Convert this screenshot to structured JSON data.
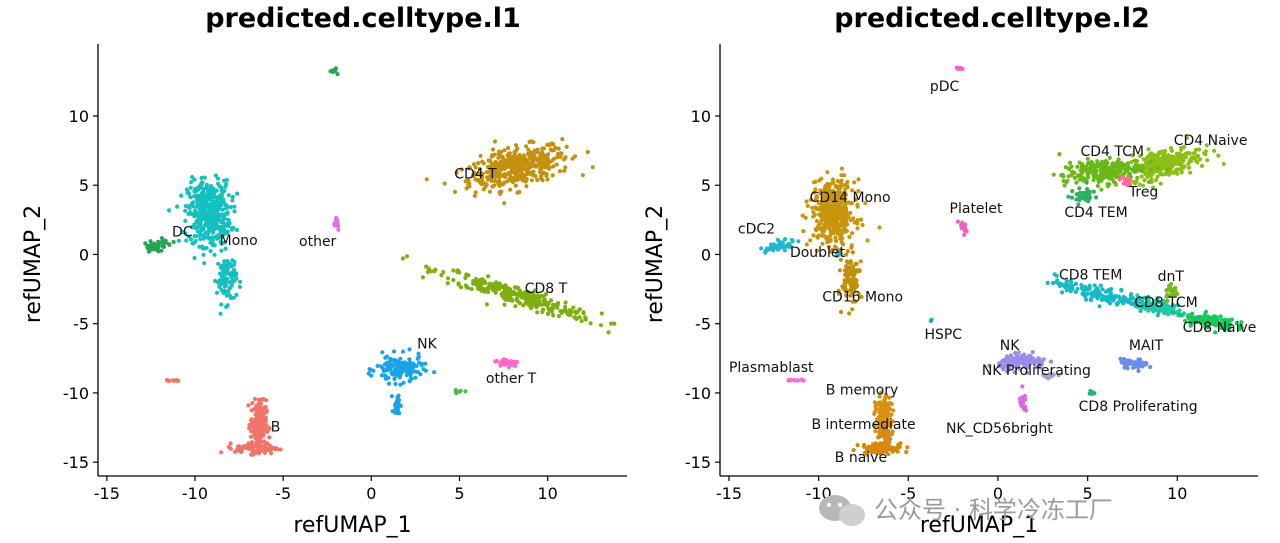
{
  "chart_data": [
    {
      "type": "scatter",
      "title": "predicted.celltype.l1",
      "xlabel": "refUMAP_1",
      "ylabel": "refUMAP_2",
      "xlim": [
        -15.5,
        14.5
      ],
      "ylim": [
        -16,
        15.2
      ],
      "xticks": [
        -15,
        -10,
        -5,
        0,
        5,
        10
      ],
      "yticks": [
        -15,
        -10,
        -5,
        0,
        5,
        10
      ],
      "xtick_labels": [
        "-15",
        "-10",
        "-5",
        "0",
        "5",
        "10"
      ],
      "ytick_labels": [
        "-15",
        "-10",
        "-5",
        "0",
        "5",
        "10"
      ],
      "clusters": [
        {
          "name": "CD4 T",
          "color": "#c59010",
          "center": [
            8.3,
            6.3
          ],
          "spread": [
            2.7,
            1.2
          ],
          "angle": 18,
          "count": 420,
          "label": "CD4 T",
          "label_pos": [
            4.7,
            5.5
          ]
        },
        {
          "name": "CD8 T",
          "color": "#7fae10",
          "center": [
            8.3,
            -3.0
          ],
          "spread": [
            4.4,
            0.55
          ],
          "angle": -22,
          "count": 280,
          "label": "CD8 T",
          "label_pos": [
            8.7,
            -2.8
          ]
        },
        {
          "name": "Mono",
          "color": "#14c0c0",
          "center": [
            -9.2,
            3.0
          ],
          "spread": [
            1.1,
            2.1
          ],
          "angle": 0,
          "count": 420,
          "label": "Mono",
          "label_pos": [
            -8.6,
            0.7
          ]
        },
        {
          "name": "Mono tail",
          "color": "#14c0c0",
          "center": [
            -8.2,
            -1.7
          ],
          "spread": [
            0.5,
            1.6
          ],
          "angle": 0,
          "count": 100
        },
        {
          "name": "DC",
          "color": "#24a550",
          "center": [
            -12.2,
            0.6
          ],
          "spread": [
            0.8,
            0.3
          ],
          "angle": 20,
          "count": 45,
          "label": "DC",
          "label_pos": [
            -11.3,
            1.3
          ]
        },
        {
          "name": "DC top",
          "color": "#24a550",
          "center": [
            -2.1,
            13.3
          ],
          "spread": [
            0.3,
            0.2
          ],
          "angle": 0,
          "count": 8
        },
        {
          "name": "NK",
          "color": "#1aa3e8",
          "center": [
            1.6,
            -8.3
          ],
          "spread": [
            1.2,
            0.9
          ],
          "angle": 0,
          "count": 130,
          "label": "NK",
          "label_pos": [
            2.6,
            -6.8
          ]
        },
        {
          "name": "NK tail",
          "color": "#1aa3e8",
          "center": [
            1.5,
            -10.8
          ],
          "spread": [
            0.2,
            0.8
          ],
          "angle": 0,
          "count": 22
        },
        {
          "name": "B",
          "color": "#f07468",
          "center": [
            -6.4,
            -12.3
          ],
          "spread": [
            0.4,
            1.6
          ],
          "angle": 0,
          "count": 190,
          "label": "B",
          "label_pos": [
            -5.7,
            -12.8
          ]
        },
        {
          "name": "B base",
          "color": "#f07468",
          "center": [
            -6.5,
            -14.0
          ],
          "spread": [
            1.1,
            0.35
          ],
          "angle": 0,
          "count": 80
        },
        {
          "name": "B small",
          "color": "#f07468",
          "center": [
            -11.3,
            -9.1
          ],
          "spread": [
            0.5,
            0.06
          ],
          "angle": 0,
          "count": 10
        },
        {
          "name": "other",
          "color": "#e06ee8",
          "center": [
            -2.0,
            2.3
          ],
          "spread": [
            0.2,
            0.5
          ],
          "angle": 0,
          "count": 14,
          "label": "other",
          "label_pos": [
            -4.1,
            0.6
          ]
        },
        {
          "name": "other T",
          "color": "#ff66c6",
          "center": [
            7.7,
            -7.8
          ],
          "spread": [
            0.6,
            0.25
          ],
          "angle": 0,
          "count": 40,
          "label": "other T",
          "label_pos": [
            6.5,
            -9.3
          ]
        },
        {
          "name": "other T left",
          "color": "#4fb848",
          "center": [
            5.1,
            -9.9
          ],
          "spread": [
            0.3,
            0.1
          ],
          "angle": 0,
          "count": 6
        }
      ]
    },
    {
      "type": "scatter",
      "title": "predicted.celltype.l2",
      "xlabel": "refUMAP_1",
      "ylabel": "refUMAP_2",
      "xlim": [
        -15.5,
        14.5
      ],
      "ylim": [
        -16,
        15.2
      ],
      "xticks": [
        -15,
        -10,
        -5,
        0,
        5,
        10
      ],
      "yticks": [
        -15,
        -10,
        -5,
        0,
        5,
        10
      ],
      "xtick_labels": [
        "-15",
        "-10",
        "-5",
        "0",
        "5",
        "10"
      ],
      "ytick_labels": [
        "-15",
        "-10",
        "-5",
        "0",
        "5",
        "10"
      ],
      "clusters": [
        {
          "name": "CD4 Naive",
          "color": "#8cbe14",
          "center": [
            9.3,
            6.6
          ],
          "spread": [
            2.0,
            0.9
          ],
          "angle": 18,
          "count": 250,
          "label": "CD4 Naive",
          "label_pos": [
            9.8,
            7.9
          ]
        },
        {
          "name": "CD4 TCM",
          "color": "#6ab818",
          "center": [
            5.8,
            6.0
          ],
          "spread": [
            2.0,
            0.8
          ],
          "angle": 8,
          "count": 230,
          "label": "CD4 TCM",
          "label_pos": [
            4.6,
            7.1
          ]
        },
        {
          "name": "CD4 TEM",
          "color": "#2fb060",
          "center": [
            4.8,
            4.2
          ],
          "spread": [
            0.7,
            0.5
          ],
          "angle": 0,
          "count": 40,
          "label": "CD4 TEM",
          "label_pos": [
            3.7,
            2.7
          ]
        },
        {
          "name": "Treg",
          "color": "#ff6a9c",
          "center": [
            7.1,
            5.3
          ],
          "spread": [
            0.3,
            0.3
          ],
          "angle": 0,
          "count": 18,
          "label": "Treg",
          "label_pos": [
            7.3,
            4.2
          ]
        },
        {
          "name": "CD8 TEM",
          "color": "#18b8c8",
          "center": [
            5.8,
            -2.9
          ],
          "spread": [
            2.6,
            0.5
          ],
          "angle": -18,
          "count": 150,
          "label": "CD8 TEM",
          "label_pos": [
            3.4,
            -1.8
          ]
        },
        {
          "name": "CD8 TCM",
          "color": "#1ec8a8",
          "center": [
            9.1,
            -3.8
          ],
          "spread": [
            1.4,
            0.45
          ],
          "angle": -20,
          "count": 90,
          "label": "CD8 TCM",
          "label_pos": [
            7.6,
            -3.8
          ]
        },
        {
          "name": "CD8 Naive",
          "color": "#18c85a",
          "center": [
            11.8,
            -4.8
          ],
          "spread": [
            1.3,
            0.45
          ],
          "angle": -10,
          "count": 110,
          "label": "CD8 Naive",
          "label_pos": [
            10.3,
            -5.6
          ]
        },
        {
          "name": "dnT",
          "color": "#7ab820",
          "center": [
            9.7,
            -2.7
          ],
          "spread": [
            0.4,
            0.5
          ],
          "angle": 0,
          "count": 22,
          "label": "dnT",
          "label_pos": [
            8.9,
            -1.9
          ]
        },
        {
          "name": "MAIT",
          "color": "#6a8ee8",
          "center": [
            7.6,
            -7.9
          ],
          "spread": [
            0.7,
            0.3
          ],
          "angle": 0,
          "count": 50,
          "label": "MAIT",
          "label_pos": [
            7.3,
            -6.9
          ]
        },
        {
          "name": "NK",
          "color": "#9a8ce8",
          "center": [
            1.4,
            -7.8
          ],
          "spread": [
            1.2,
            0.5
          ],
          "angle": 0,
          "count": 120,
          "label": "NK",
          "label_pos": [
            0.1,
            -6.9
          ]
        },
        {
          "name": "NK_CD56bright",
          "color": "#d86ae8",
          "center": [
            1.4,
            -10.8
          ],
          "spread": [
            0.2,
            0.7
          ],
          "angle": 0,
          "count": 24,
          "label": "NK_CD56bright",
          "label_pos": [
            -2.9,
            -12.9
          ]
        },
        {
          "name": "NK Proliferating",
          "color": "#a8a0d0",
          "center": [
            3.0,
            -8.8
          ],
          "spread": [
            0.5,
            0.2
          ],
          "angle": 0,
          "count": 10,
          "label": "NK Proliferating",
          "label_pos": [
            -0.9,
            -8.7
          ]
        },
        {
          "name": "CD8 Proliferating",
          "color": "#20b878",
          "center": [
            5.2,
            -10.0
          ],
          "spread": [
            0.2,
            0.1
          ],
          "angle": 0,
          "count": 6,
          "label": "CD8 Proliferating",
          "label_pos": [
            4.5,
            -11.3
          ]
        },
        {
          "name": "CD14 Mono",
          "color": "#c8960e",
          "center": [
            -9.2,
            3.0
          ],
          "spread": [
            1.1,
            2.1
          ],
          "angle": 0,
          "count": 420,
          "label": "CD14 Mono",
          "label_pos": [
            -10.5,
            3.8
          ]
        },
        {
          "name": "CD16 Mono",
          "color": "#c0900c",
          "center": [
            -8.2,
            -1.8
          ],
          "spread": [
            0.45,
            1.6
          ],
          "angle": 0,
          "count": 100,
          "label": "CD16 Mono",
          "label_pos": [
            -9.8,
            -3.4
          ]
        },
        {
          "name": "Doublet",
          "color": "#3ab8b8",
          "center": [
            -8.8,
            0.0
          ],
          "spread": [
            0.3,
            0.3
          ],
          "angle": 0,
          "count": 6,
          "label": "Doublet",
          "label_pos": [
            -11.6,
            -0.2
          ]
        },
        {
          "name": "cDC2",
          "color": "#20b8d0",
          "center": [
            -12.2,
            0.6
          ],
          "spread": [
            0.8,
            0.3
          ],
          "angle": 20,
          "count": 45,
          "label": "cDC2",
          "label_pos": [
            -14.5,
            1.5
          ]
        },
        {
          "name": "pDC",
          "color": "#f060c8",
          "center": [
            -2.1,
            13.4
          ],
          "spread": [
            0.3,
            0.2
          ],
          "angle": 0,
          "count": 8,
          "label": "pDC",
          "label_pos": [
            -3.8,
            11.8
          ]
        },
        {
          "name": "Platelet",
          "color": "#ee60c0",
          "center": [
            -2.0,
            2.0
          ],
          "spread": [
            0.2,
            0.5
          ],
          "angle": 0,
          "count": 14,
          "label": "Platelet",
          "label_pos": [
            -2.7,
            3.0
          ]
        },
        {
          "name": "HSPC",
          "color": "#20a8c0",
          "center": [
            -3.8,
            -4.8
          ],
          "spread": [
            0.1,
            0.1
          ],
          "angle": 0,
          "count": 3,
          "label": "HSPC",
          "label_pos": [
            -4.1,
            -6.1
          ]
        },
        {
          "name": "Plasmablast",
          "color": "#f070d8",
          "center": [
            -11.3,
            -9.1
          ],
          "spread": [
            0.5,
            0.06
          ],
          "angle": 0,
          "count": 10,
          "label": "Plasmablast",
          "label_pos": [
            -15.0,
            -8.5
          ]
        },
        {
          "name": "B memory",
          "color": "#d89010",
          "center": [
            -6.4,
            -11.6
          ],
          "spread": [
            0.4,
            1.2
          ],
          "angle": 0,
          "count": 110,
          "label": "B memory",
          "label_pos": [
            -9.6,
            -10.1
          ]
        },
        {
          "name": "B intermediate",
          "color": "#d88a14",
          "center": [
            -6.3,
            -12.8
          ],
          "spread": [
            0.4,
            0.7
          ],
          "angle": 0,
          "count": 60,
          "label": "B intermediate",
          "label_pos": [
            -10.4,
            -12.6
          ]
        },
        {
          "name": "B naive",
          "color": "#d6880a",
          "center": [
            -6.5,
            -14.0
          ],
          "spread": [
            1.1,
            0.35
          ],
          "angle": 0,
          "count": 90,
          "label": "B naive",
          "label_pos": [
            -9.1,
            -15.0
          ]
        }
      ]
    }
  ],
  "watermark": {
    "text": "公众号 · 科学冷冻工厂"
  }
}
